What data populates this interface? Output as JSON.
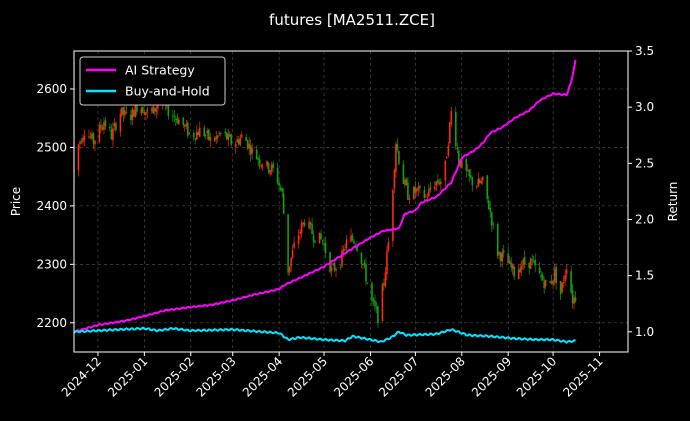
{
  "chart_data": {
    "type": "line",
    "title": "futures [MA2511.ZCE]",
    "xlabel": "",
    "ylabel": "Price",
    "y2label": "Return",
    "x_ticks": [
      "2024-12",
      "2025-01",
      "2025-02",
      "2025-03",
      "2025-04",
      "2025-05",
      "2025-06",
      "2025-07",
      "2025-08",
      "2025-09",
      "2025-10",
      "2025-11"
    ],
    "xlim": [
      "2024-11-15",
      "2025-11-20"
    ],
    "ylim": [
      2150,
      2665
    ],
    "y_ticks": [
      2200,
      2300,
      2400,
      2500,
      2600
    ],
    "y2lim": [
      0.82,
      3.5
    ],
    "y2_ticks": [
      "1.0",
      "1.5",
      "2.0",
      "2.5",
      "3.0",
      "3.5"
    ],
    "grid": true,
    "legend_position": "top-left",
    "colors": {
      "up": "#ff2a10",
      "down": "#14a014",
      "strategy": "#ff00ff",
      "buyhold": "#00e5ff"
    },
    "price_series": {
      "name": "MA2511.ZCE",
      "anchors": [
        [
          "2024-11-15",
          2460
        ],
        [
          "2024-11-18",
          2505
        ],
        [
          "2024-11-22",
          2530
        ],
        [
          "2024-11-28",
          2510
        ],
        [
          "2024-12-05",
          2545
        ],
        [
          "2024-12-10",
          2520
        ],
        [
          "2024-12-16",
          2560
        ],
        [
          "2024-12-22",
          2550
        ],
        [
          "2024-12-28",
          2575
        ],
        [
          "2025-01-05",
          2555
        ],
        [
          "2025-01-12",
          2580
        ],
        [
          "2025-01-18",
          2560
        ],
        [
          "2025-01-25",
          2545
        ],
        [
          "2025-02-01",
          2520
        ],
        [
          "2025-02-08",
          2530
        ],
        [
          "2025-02-15",
          2510
        ],
        [
          "2025-02-22",
          2525
        ],
        [
          "2025-03-01",
          2505
        ],
        [
          "2025-03-08",
          2520
        ],
        [
          "2025-03-15",
          2490
        ],
        [
          "2025-03-22",
          2470
        ],
        [
          "2025-03-29",
          2460
        ],
        [
          "2025-04-03",
          2420
        ],
        [
          "2025-04-07",
          2290
        ],
        [
          "2025-04-12",
          2340
        ],
        [
          "2025-04-18",
          2375
        ],
        [
          "2025-04-24",
          2350
        ],
        [
          "2025-04-30",
          2340
        ],
        [
          "2025-05-06",
          2290
        ],
        [
          "2025-05-12",
          2305
        ],
        [
          "2025-05-17",
          2345
        ],
        [
          "2025-05-22",
          2340
        ],
        [
          "2025-05-27",
          2300
        ],
        [
          "2025-06-02",
          2235
        ],
        [
          "2025-06-06",
          2210
        ],
        [
          "2025-06-10",
          2270
        ],
        [
          "2025-06-14",
          2360
        ],
        [
          "2025-06-18",
          2510
        ],
        [
          "2025-06-22",
          2450
        ],
        [
          "2025-06-26",
          2420
        ],
        [
          "2025-07-02",
          2425
        ],
        [
          "2025-07-08",
          2415
        ],
        [
          "2025-07-14",
          2440
        ],
        [
          "2025-07-20",
          2445
        ],
        [
          "2025-07-25",
          2560
        ],
        [
          "2025-07-30",
          2480
        ],
        [
          "2025-08-05",
          2450
        ],
        [
          "2025-08-10",
          2435
        ],
        [
          "2025-08-15",
          2440
        ],
        [
          "2025-08-20",
          2390
        ],
        [
          "2025-08-25",
          2320
        ],
        [
          "2025-08-30",
          2310
        ],
        [
          "2025-09-05",
          2285
        ],
        [
          "2025-09-10",
          2300
        ],
        [
          "2025-09-16",
          2305
        ],
        [
          "2025-09-22",
          2280
        ],
        [
          "2025-09-28",
          2260
        ],
        [
          "2025-10-02",
          2285
        ],
        [
          "2025-10-06",
          2250
        ],
        [
          "2025-10-10",
          2300
        ],
        [
          "2025-10-14",
          2240
        ],
        [
          "2025-10-16",
          2245
        ]
      ]
    },
    "series": [
      {
        "name": "AI Strategy",
        "axis": "right",
        "points": [
          [
            "2024-11-15",
            1.0
          ],
          [
            "2024-12-01",
            1.06
          ],
          [
            "2024-12-20",
            1.1
          ],
          [
            "2025-01-01",
            1.14
          ],
          [
            "2025-01-15",
            1.19
          ],
          [
            "2025-02-01",
            1.22
          ],
          [
            "2025-02-15",
            1.24
          ],
          [
            "2025-03-01",
            1.28
          ],
          [
            "2025-03-15",
            1.33
          ],
          [
            "2025-04-01",
            1.38
          ],
          [
            "2025-04-05",
            1.42
          ],
          [
            "2025-04-15",
            1.48
          ],
          [
            "2025-05-01",
            1.58
          ],
          [
            "2025-05-15",
            1.7
          ],
          [
            "2025-06-01",
            1.84
          ],
          [
            "2025-06-10",
            1.9
          ],
          [
            "2025-06-20",
            1.92
          ],
          [
            "2025-06-24",
            2.05
          ],
          [
            "2025-07-01",
            2.08
          ],
          [
            "2025-07-05",
            2.15
          ],
          [
            "2025-07-15",
            2.2
          ],
          [
            "2025-07-25",
            2.33
          ],
          [
            "2025-08-01",
            2.55
          ],
          [
            "2025-08-10",
            2.62
          ],
          [
            "2025-08-15",
            2.68
          ],
          [
            "2025-08-20",
            2.77
          ],
          [
            "2025-08-28",
            2.82
          ],
          [
            "2025-09-05",
            2.9
          ],
          [
            "2025-09-15",
            2.97
          ],
          [
            "2025-09-22",
            3.06
          ],
          [
            "2025-10-01",
            3.12
          ],
          [
            "2025-10-10",
            3.11
          ],
          [
            "2025-10-13",
            3.22
          ],
          [
            "2025-10-16",
            3.42
          ]
        ]
      },
      {
        "name": "Buy-and-Hold",
        "axis": "right",
        "points": [
          [
            "2024-11-15",
            1.0
          ],
          [
            "2024-12-01",
            1.01
          ],
          [
            "2024-12-15",
            1.02
          ],
          [
            "2025-01-01",
            1.03
          ],
          [
            "2025-01-10",
            1.01
          ],
          [
            "2025-01-20",
            1.03
          ],
          [
            "2025-02-01",
            1.01
          ],
          [
            "2025-03-01",
            1.02
          ],
          [
            "2025-03-20",
            1.0
          ],
          [
            "2025-04-01",
            0.99
          ],
          [
            "2025-04-07",
            0.93
          ],
          [
            "2025-04-15",
            0.95
          ],
          [
            "2025-05-01",
            0.93
          ],
          [
            "2025-05-15",
            0.92
          ],
          [
            "2025-05-20",
            0.96
          ],
          [
            "2025-06-01",
            0.93
          ],
          [
            "2025-06-08",
            0.91
          ],
          [
            "2025-06-15",
            0.95
          ],
          [
            "2025-06-20",
            1.0
          ],
          [
            "2025-06-25",
            0.97
          ],
          [
            "2025-07-15",
            0.98
          ],
          [
            "2025-07-25",
            1.02
          ],
          [
            "2025-08-05",
            0.97
          ],
          [
            "2025-08-20",
            0.96
          ],
          [
            "2025-09-05",
            0.94
          ],
          [
            "2025-09-20",
            0.93
          ],
          [
            "2025-10-01",
            0.93
          ],
          [
            "2025-10-10",
            0.91
          ],
          [
            "2025-10-16",
            0.92
          ]
        ]
      }
    ]
  }
}
